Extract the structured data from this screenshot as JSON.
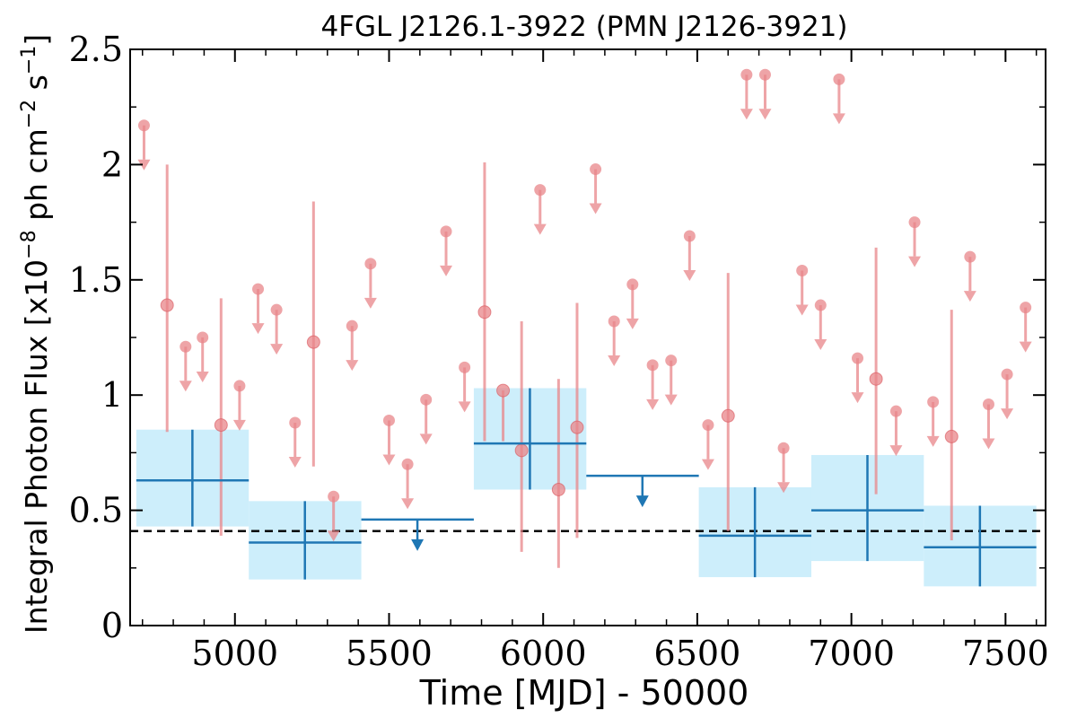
{
  "chart_data": {
    "type": "scatter",
    "title": "4FGL J2126.1-3922 (PMN J2126-3921)",
    "xlabel": "Time [MJD] - 50000",
    "ylabel": "Integral Photon Flux [x10^-8 ph cm^-2 s^-1]",
    "ylabel_parts": [
      "Integral Photon Flux [x10",
      "−8",
      " ph cm",
      "−2",
      " s",
      "−1",
      "]"
    ],
    "xlim": [
      4660,
      7630
    ],
    "ylim": [
      0,
      2.5
    ],
    "x_ticks": [
      5000,
      5500,
      6000,
      6500,
      7000,
      7500
    ],
    "x_tick_labels": [
      "5000",
      "5500",
      "6000",
      "6500",
      "7000",
      "7500"
    ],
    "y_ticks": [
      0,
      0.5,
      1,
      1.5,
      2,
      2.5
    ],
    "y_tick_labels": [
      "0",
      "0.5",
      "1",
      "1.5",
      "2",
      "2.5"
    ],
    "reference_line": 0.41,
    "colors": {
      "monthly": "#e8868a",
      "yearly": "#1f77b4",
      "band": "#cdeefb",
      "reference": "#000000"
    },
    "monthly_detections": [
      {
        "x": 4780,
        "y": 1.39,
        "lo": 0.84,
        "hi": 2.0
      },
      {
        "x": 4955,
        "y": 0.87,
        "lo": 0.39,
        "hi": 1.42
      },
      {
        "x": 5255,
        "y": 1.23,
        "lo": 0.69,
        "hi": 1.84
      },
      {
        "x": 5810,
        "y": 1.36,
        "lo": 0.8,
        "hi": 2.01
      },
      {
        "x": 5870,
        "y": 1.02,
        "lo": 0.8,
        "hi": 1.02
      },
      {
        "x": 5930,
        "y": 0.76,
        "lo": 0.32,
        "hi": 1.32
      },
      {
        "x": 6050,
        "y": 0.59,
        "lo": 0.25,
        "hi": 1.07
      },
      {
        "x": 6110,
        "y": 0.86,
        "lo": 0.38,
        "hi": 1.4
      },
      {
        "x": 6600,
        "y": 0.91,
        "lo": 0.41,
        "hi": 1.53
      },
      {
        "x": 7080,
        "y": 1.07,
        "lo": 0.57,
        "hi": 1.64
      },
      {
        "x": 7325,
        "y": 0.82,
        "lo": 0.37,
        "hi": 1.37
      }
    ],
    "monthly_upper_limits": [
      {
        "x": 4705,
        "y": 2.17
      },
      {
        "x": 4840,
        "y": 1.21
      },
      {
        "x": 4895,
        "y": 1.25
      },
      {
        "x": 5015,
        "y": 1.04
      },
      {
        "x": 5075,
        "y": 1.46
      },
      {
        "x": 5135,
        "y": 1.37
      },
      {
        "x": 5195,
        "y": 0.88
      },
      {
        "x": 5320,
        "y": 0.56
      },
      {
        "x": 5380,
        "y": 1.3
      },
      {
        "x": 5440,
        "y": 1.57
      },
      {
        "x": 5500,
        "y": 0.89
      },
      {
        "x": 5560,
        "y": 0.7
      },
      {
        "x": 5620,
        "y": 0.98
      },
      {
        "x": 5685,
        "y": 1.71
      },
      {
        "x": 5745,
        "y": 1.12
      },
      {
        "x": 5990,
        "y": 1.89
      },
      {
        "x": 6170,
        "y": 1.98
      },
      {
        "x": 6230,
        "y": 1.32
      },
      {
        "x": 6290,
        "y": 1.48
      },
      {
        "x": 6355,
        "y": 1.13
      },
      {
        "x": 6415,
        "y": 1.15
      },
      {
        "x": 6475,
        "y": 1.69
      },
      {
        "x": 6535,
        "y": 0.87
      },
      {
        "x": 6660,
        "y": 2.39
      },
      {
        "x": 6720,
        "y": 2.39
      },
      {
        "x": 6780,
        "y": 0.77
      },
      {
        "x": 6840,
        "y": 1.54
      },
      {
        "x": 6900,
        "y": 1.39
      },
      {
        "x": 6960,
        "y": 2.37
      },
      {
        "x": 7020,
        "y": 1.16
      },
      {
        "x": 7145,
        "y": 0.93
      },
      {
        "x": 7205,
        "y": 1.75
      },
      {
        "x": 7265,
        "y": 0.97
      },
      {
        "x": 7385,
        "y": 1.6
      },
      {
        "x": 7445,
        "y": 0.96
      },
      {
        "x": 7505,
        "y": 1.09
      },
      {
        "x": 7565,
        "y": 1.38
      }
    ],
    "yearly_detections": [
      {
        "x0": 4680,
        "x1": 5045,
        "x": 4862,
        "y": 0.63,
        "lo": 0.43,
        "hi": 0.85
      },
      {
        "x0": 5045,
        "x1": 5410,
        "x": 5227,
        "y": 0.36,
        "lo": 0.2,
        "hi": 0.54
      },
      {
        "x0": 5775,
        "x1": 6140,
        "x": 5957,
        "y": 0.79,
        "lo": 0.59,
        "hi": 1.03
      },
      {
        "x0": 6505,
        "x1": 6870,
        "x": 6687,
        "y": 0.39,
        "lo": 0.21,
        "hi": 0.6
      },
      {
        "x0": 6870,
        "x1": 7235,
        "x": 7052,
        "y": 0.5,
        "lo": 0.28,
        "hi": 0.74
      },
      {
        "x0": 7235,
        "x1": 7600,
        "x": 7417,
        "y": 0.34,
        "lo": 0.17,
        "hi": 0.52
      }
    ],
    "yearly_upper_limits": [
      {
        "x0": 5410,
        "x1": 5775,
        "x": 5592,
        "y": 0.46
      },
      {
        "x0": 6140,
        "x1": 6505,
        "x": 6322,
        "y": 0.65
      }
    ]
  }
}
